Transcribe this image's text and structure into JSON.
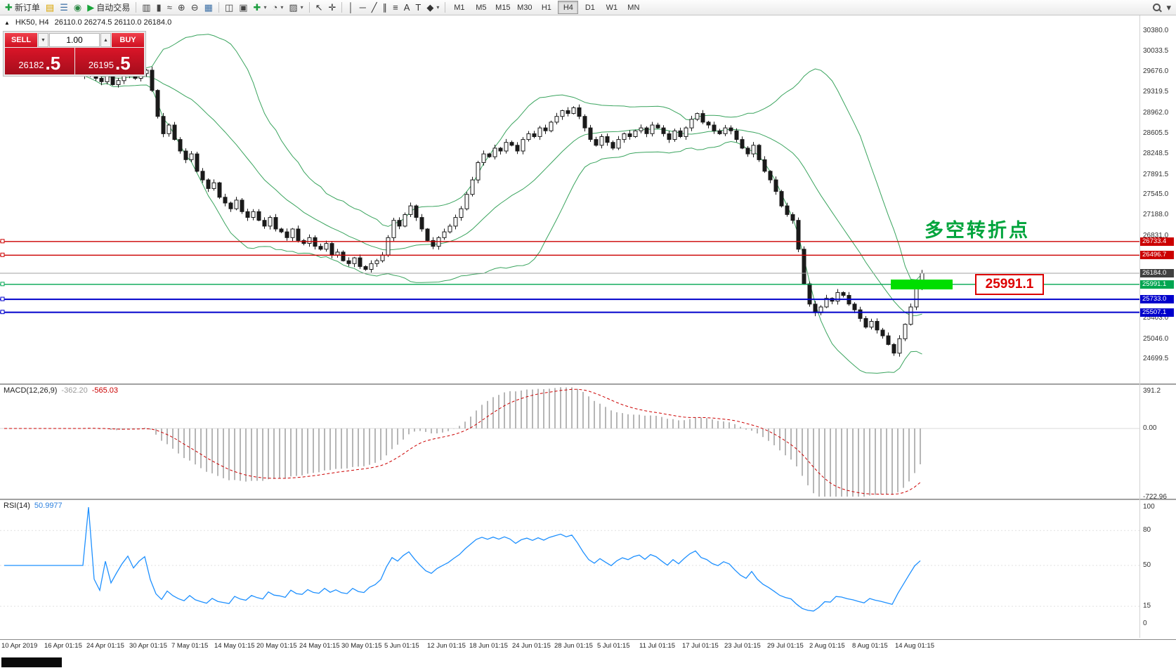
{
  "toolbar": {
    "items": [
      {
        "t": "btn",
        "n": "new-order-button",
        "g": "✚",
        "gc": "#1e9e40",
        "label": "新订单"
      },
      {
        "t": "btn",
        "n": "charts-profile-button",
        "g": "▤",
        "gc": "#d9a400"
      },
      {
        "t": "btn",
        "n": "market-watch-button",
        "g": "☰",
        "gc": "#3a6ea5"
      },
      {
        "t": "btn",
        "n": "navigator-button",
        "g": "◉",
        "gc": "#2d8a46"
      },
      {
        "t": "btn",
        "n": "autotrading-button",
        "g": "▶",
        "gc": "#18a53a",
        "label": "自动交易"
      },
      {
        "t": "sep"
      },
      {
        "t": "btn",
        "n": "bar-chart-button",
        "g": "▥",
        "gc": "#444"
      },
      {
        "t": "btn",
        "n": "candlestick-button",
        "g": "▮",
        "gc": "#444"
      },
      {
        "t": "btn",
        "n": "line-chart-button",
        "g": "≈",
        "gc": "#444"
      },
      {
        "t": "btn",
        "n": "zoom-in-button",
        "g": "⊕",
        "gc": "#444"
      },
      {
        "t": "btn",
        "n": "zoom-out-button",
        "g": "⊖",
        "gc": "#444"
      },
      {
        "t": "btn",
        "n": "grid-button",
        "g": "▦",
        "gc": "#3a6ea5"
      },
      {
        "t": "sep"
      },
      {
        "t": "btn",
        "n": "tile-windows-button",
        "g": "◫",
        "gc": "#444"
      },
      {
        "t": "btn",
        "n": "cascade-windows-button",
        "g": "▣",
        "gc": "#444"
      },
      {
        "t": "btn",
        "n": "new-chart-button",
        "g": "✚",
        "gc": "#1e9e40",
        "arrow": true
      },
      {
        "t": "btn",
        "n": "profiles-button",
        "g": "◔",
        "gc": "#444",
        "arrow": true
      },
      {
        "t": "btn",
        "n": "templates-button",
        "g": "▨",
        "gc": "#444",
        "arrow": true
      },
      {
        "t": "sep"
      },
      {
        "t": "btn",
        "n": "cursor-button",
        "g": "↖",
        "gc": "#333"
      },
      {
        "t": "btn",
        "n": "crosshair-button",
        "g": "✛",
        "gc": "#333"
      },
      {
        "t": "sep"
      },
      {
        "t": "btn",
        "n": "vertical-line-button",
        "g": "│",
        "gc": "#333"
      },
      {
        "t": "btn",
        "n": "horizontal-line-button",
        "g": "─",
        "gc": "#333"
      },
      {
        "t": "btn",
        "n": "trendline-button",
        "g": "╱",
        "gc": "#333"
      },
      {
        "t": "btn",
        "n": "channel-button",
        "g": "∥",
        "gc": "#333"
      },
      {
        "t": "btn",
        "n": "fibonacci-button",
        "g": "≡",
        "gc": "#333"
      },
      {
        "t": "btn",
        "n": "text-button",
        "g": "A",
        "gc": "#333"
      },
      {
        "t": "btn",
        "n": "label-button",
        "g": "T",
        "gc": "#333"
      },
      {
        "t": "btn",
        "n": "shapes-button",
        "g": "◆",
        "gc": "#333",
        "arrow": true
      },
      {
        "t": "sep"
      },
      {
        "t": "tf"
      },
      {
        "t": "spacer"
      },
      {
        "t": "btn",
        "n": "search-button",
        "g": "search"
      },
      {
        "t": "btn",
        "n": "quick-menu-button",
        "g": "▾",
        "gc": "#444"
      }
    ],
    "timeframes": [
      "M1",
      "M5",
      "M15",
      "M30",
      "H1",
      "H4",
      "D1",
      "W1",
      "MN"
    ],
    "active_timeframe": "H4"
  },
  "chart": {
    "collapse_glyph": "▲",
    "symbol_label": "HK50, H4",
    "ohlc": "26110.0 26274.5 26110.0 26184.0",
    "annotation": "多空转折点",
    "price_callout": "25991.1"
  },
  "trade_panel": {
    "sell_label": "SELL",
    "buy_label": "BUY",
    "vol_down_glyph": "▼",
    "vol_up_glyph": "▲",
    "volume": "1.00",
    "sell_price_main": "26182",
    "sell_price_frac": ".5",
    "buy_price_main": "26195",
    "buy_price_frac": ".5"
  },
  "indicators": {
    "macd_name": "MACD(12,26,9)",
    "macd_value": "-362.20",
    "macd_signal": "-565.03",
    "rsi_name": "RSI(14)",
    "rsi_value": "50.9977"
  },
  "chart_data": {
    "type": "candlestick",
    "symbol": "HK50",
    "timeframe": "H4",
    "ylim": [
      24274,
      30648
    ],
    "closes": [
      29600,
      29680,
      29560,
      29500,
      29620,
      29450,
      29520,
      29600,
      29680,
      29560,
      29640,
      29700,
      29350,
      28900,
      28600,
      28750,
      28500,
      28300,
      28150,
      28250,
      27950,
      27800,
      27650,
      27750,
      27500,
      27400,
      27300,
      27450,
      27250,
      27150,
      27250,
      27100,
      27000,
      27150,
      26950,
      26900,
      26800,
      26950,
      26750,
      26700,
      26800,
      26650,
      26600,
      26700,
      26500,
      26550,
      26400,
      26350,
      26450,
      26300,
      26250,
      26350,
      26400,
      26500,
      26800,
      27100,
      27000,
      27200,
      27350,
      27150,
      26950,
      26750,
      26650,
      26800,
      26900,
      27000,
      27150,
      27300,
      27550,
      27800,
      28100,
      28250,
      28200,
      28350,
      28300,
      28450,
      28400,
      28300,
      28500,
      28600,
      28550,
      28700,
      28650,
      28800,
      28900,
      29000,
      28950,
      29050,
      28900,
      28700,
      28500,
      28400,
      28550,
      28450,
      28350,
      28500,
      28600,
      28550,
      28650,
      28700,
      28600,
      28750,
      28700,
      28600,
      28500,
      28650,
      28550,
      28700,
      28850,
      28950,
      28800,
      28750,
      28650,
      28600,
      28700,
      28650,
      28500,
      28350,
      28250,
      28400,
      28150,
      27950,
      27800,
      27600,
      27350,
      27200,
      27100,
      26600,
      26000,
      25650,
      25500,
      25600,
      25750,
      25700,
      25850,
      25800,
      25650,
      25550,
      25400,
      25250,
      25350,
      25200,
      25100,
      24950,
      24800,
      25050,
      25300,
      25600,
      25950,
      26184
    ],
    "bollinger": {
      "period": 20,
      "deviation": 2
    },
    "macd": {
      "fast": 12,
      "slow": 26,
      "signal": 9
    },
    "rsi": {
      "period": 14
    },
    "levels": [
      {
        "price": 26733.4,
        "color": "#cc0000",
        "width": 1.4,
        "tag": "26733.4"
      },
      {
        "price": 26496.7,
        "color": "#cc0000",
        "width": 1.4,
        "tag": "26496.7"
      },
      {
        "price": 26184.0,
        "color": "#a0a0a0",
        "width": 1,
        "tag": "26184.0",
        "tag_bg": "#404040",
        "handle": false
      },
      {
        "price": 25991.1,
        "color": "#00a651",
        "width": 1.4,
        "tag": "25991.1"
      },
      {
        "price": 25733.0,
        "color": "#0000cc",
        "width": 2,
        "tag": "25733.0"
      },
      {
        "price": 25507.1,
        "color": "#0000cc",
        "width": 2,
        "tag": "25507.1"
      }
    ],
    "price_labels": [
      {
        "text": "30380.0",
        "price": 30380.0
      },
      {
        "text": "30033.5",
        "price": 30033.5
      },
      {
        "text": "29676.0",
        "price": 29676.0
      },
      {
        "text": "29319.5",
        "price": 29319.5
      },
      {
        "text": "28962.0",
        "price": 28962.0
      },
      {
        "text": "28605.5",
        "price": 28605.5
      },
      {
        "text": "28248.5",
        "price": 28248.5
      },
      {
        "text": "27891.5",
        "price": 27891.5
      },
      {
        "text": "27545.0",
        "price": 27545.0
      },
      {
        "text": "27188.0",
        "price": 27188.0
      },
      {
        "text": "26831.0",
        "price": 26831.0
      },
      {
        "text": "25403.0",
        "price": 25403.0
      },
      {
        "text": "25046.0",
        "price": 25046.0
      },
      {
        "text": "24699.5",
        "price": 24699.5
      }
    ],
    "macd_axis": [
      {
        "text": "391.2",
        "v": 391.2
      },
      {
        "text": "0.00",
        "v": 0
      },
      {
        "text": "-722.96",
        "v": -722.96
      }
    ],
    "rsi_axis": [
      {
        "text": "100",
        "v": 100
      },
      {
        "text": "80",
        "v": 80
      },
      {
        "text": "50",
        "v": 50
      },
      {
        "text": "15",
        "v": 15
      },
      {
        "text": "0",
        "v": 0
      }
    ],
    "time_labels": [
      "10 Apr 2019",
      "16 Apr 01:15",
      "24 Apr 01:15",
      "30 Apr 01:15",
      "7 May 01:15",
      "14 May 01:15",
      "20 May 01:15",
      "24 May 01:15",
      "30 May 01:15",
      "5 Jun 01:15",
      "12 Jun 01:15",
      "18 Jun 01:15",
      "24 Jun 01:15",
      "28 Jun 01:15",
      "5 Jul 01:15",
      "11 Jul 01:15",
      "17 Jul 01:15",
      "23 Jul 01:15",
      "29 Jul 01:15",
      "2 Aug 01:15",
      "8 Aug 01:15",
      "14 Aug 01:15"
    ]
  }
}
